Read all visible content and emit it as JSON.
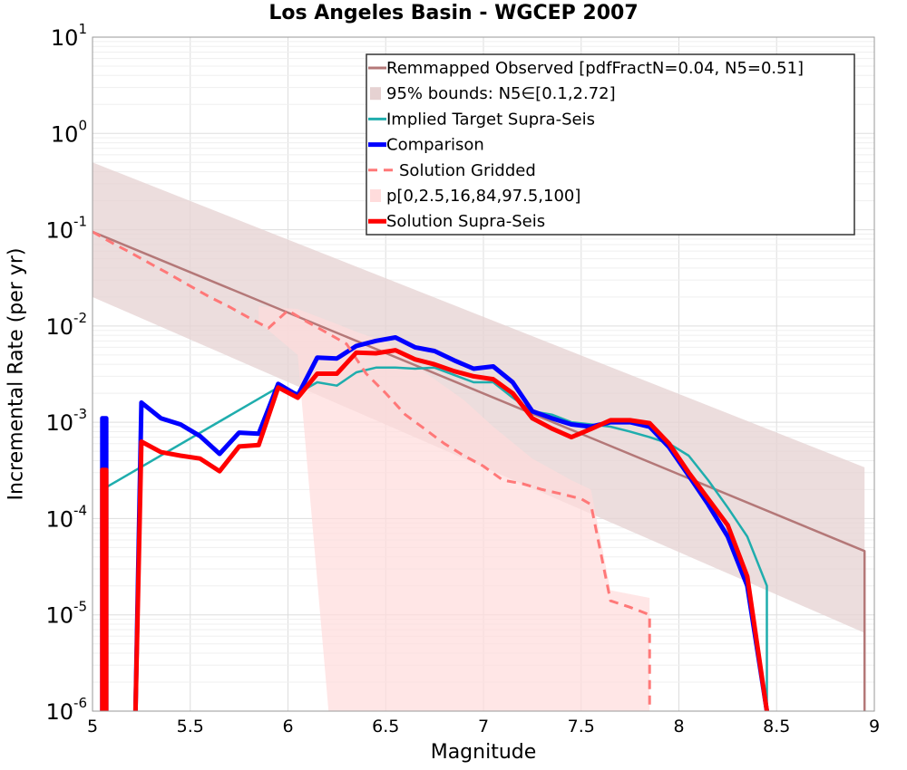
{
  "chart_data": {
    "type": "line",
    "title": "Los Angeles Basin - WGCEP 2007",
    "xlabel": "Magnitude",
    "ylabel": "Incremental Rate (per yr)",
    "xlim": [
      5,
      9
    ],
    "ylim": [
      1e-06,
      10
    ],
    "yscale": "log",
    "x_ticks": [
      5,
      5.5,
      6,
      6.5,
      7,
      7.5,
      8,
      8.5,
      9
    ],
    "x_tick_labels": [
      "5",
      "5.5",
      "6",
      "6.5",
      "7",
      "7.5",
      "8",
      "8.5",
      "9"
    ],
    "y_ticks": [
      {
        "base": "10",
        "exp": "-6",
        "value": 1e-06
      },
      {
        "base": "10",
        "exp": "-5",
        "value": 1e-05
      },
      {
        "base": "10",
        "exp": "-4",
        "value": 0.0001
      },
      {
        "base": "10",
        "exp": "-3",
        "value": 0.001
      },
      {
        "base": "10",
        "exp": "-2",
        "value": 0.01
      },
      {
        "base": "10",
        "exp": "-1",
        "value": 0.1
      },
      {
        "base": "10",
        "exp": "0",
        "value": 1
      },
      {
        "base": "10",
        "exp": "1",
        "value": 10
      }
    ],
    "legend_position": "top-right",
    "series": [
      {
        "name": "Remmapped Observed [pdfFractN=0.04, N5=0.51]",
        "kind": "line",
        "color": "#b47878",
        "x": [
          5.0,
          8.95,
          8.95
        ],
        "y": [
          0.095,
          4.6e-05,
          1e-07
        ]
      },
      {
        "name": "95% bounds: N5∈[0.1,2.72]",
        "kind": "band",
        "color": "#e6d2d2",
        "x": [
          5.0,
          8.95
        ],
        "lower": [
          0.02,
          6.5e-06
        ],
        "upper": [
          0.5,
          0.00034
        ]
      },
      {
        "name": "Implied Target Supra-Seis",
        "kind": "line",
        "color": "#1fadad",
        "x": [
          5.05,
          5.05,
          5.95,
          6.05,
          6.15,
          6.25,
          6.35,
          6.45,
          6.55,
          6.65,
          6.75,
          6.85,
          6.95,
          7.05,
          7.15,
          7.25,
          7.35,
          7.45,
          7.55,
          7.65,
          7.75,
          7.85,
          7.95,
          8.05,
          8.15,
          8.25,
          8.35,
          8.45,
          8.45
        ],
        "y": [
          1e-06,
          0.0002,
          0.0023,
          0.002,
          0.0026,
          0.0024,
          0.0033,
          0.0037,
          0.0037,
          0.0036,
          0.0037,
          0.0031,
          0.0026,
          0.0026,
          0.0018,
          0.0013,
          0.0012,
          0.001,
          0.00095,
          0.0009,
          0.0008,
          0.0007,
          0.0006,
          0.00045,
          0.00025,
          0.00013,
          6.5e-05,
          2e-05,
          1e-06
        ]
      },
      {
        "name": "Comparison",
        "kind": "line",
        "color": "#0000ff",
        "x": [
          5.05,
          5.05,
          5.07,
          5.07,
          5.22,
          5.22,
          5.25,
          5.35,
          5.45,
          5.55,
          5.65,
          5.75,
          5.85,
          5.95,
          6.05,
          6.15,
          6.25,
          6.35,
          6.45,
          6.55,
          6.65,
          6.75,
          6.85,
          6.95,
          7.05,
          7.15,
          7.25,
          7.35,
          7.45,
          7.55,
          7.65,
          7.75,
          7.85,
          7.95,
          8.05,
          8.15,
          8.25,
          8.35,
          8.45
        ],
        "y": [
          1e-06,
          0.0011,
          0.0011,
          1e-07,
          1e-07,
          1e-06,
          0.0016,
          0.0011,
          0.00095,
          0.00072,
          0.00047,
          0.00078,
          0.00076,
          0.0025,
          0.0019,
          0.0047,
          0.0046,
          0.0062,
          0.007,
          0.0076,
          0.006,
          0.0055,
          0.0044,
          0.0036,
          0.0038,
          0.0026,
          0.0013,
          0.0011,
          0.00095,
          0.0009,
          0.001,
          0.001,
          0.0009,
          0.00055,
          0.00028,
          0.00014,
          6.5e-05,
          2e-05,
          1e-06
        ]
      },
      {
        "name": "Solution Gridded",
        "kind": "line",
        "dashed": true,
        "color": "#ff7878",
        "x": [
          5.0,
          5.1,
          5.2,
          5.3,
          5.4,
          5.5,
          5.6,
          5.7,
          5.8,
          5.9,
          6.0,
          6.1,
          6.2,
          6.3,
          6.4,
          6.5,
          6.6,
          6.7,
          6.8,
          6.9,
          7.0,
          7.1,
          7.2,
          7.3,
          7.4,
          7.5,
          7.55,
          7.65,
          7.75,
          7.85,
          7.85
        ],
        "y": [
          0.095,
          0.073,
          0.057,
          0.044,
          0.034,
          0.026,
          0.02,
          0.0158,
          0.0122,
          0.0095,
          0.0145,
          0.011,
          0.0085,
          0.0065,
          0.0032,
          0.002,
          0.0012,
          0.00085,
          0.0006,
          0.00045,
          0.00035,
          0.00025,
          0.00023,
          0.0002,
          0.00018,
          0.00016,
          0.00014,
          1.4e-05,
          1.2e-05,
          1e-05,
          1e-07
        ]
      },
      {
        "name": "p[0,2.5,16,84,97.5,100]",
        "kind": "band",
        "color": "#ffdcdc",
        "x": [
          5.85,
          6.05,
          6.25,
          6.35,
          6.5,
          6.6,
          6.75,
          6.9,
          7.05,
          7.25,
          7.45,
          7.55,
          7.65,
          7.85
        ],
        "lower": [
          0.011,
          0.005,
          1e-07,
          1e-07,
          1e-07,
          1e-07,
          1e-07,
          1e-07,
          1e-07,
          1e-07,
          1e-07,
          1e-07,
          1e-07,
          1e-07
        ],
        "upper": [
          0.016,
          0.015,
          0.0105,
          0.0087,
          0.0068,
          0.0046,
          0.0028,
          0.0017,
          0.0009,
          0.00042,
          0.00025,
          0.0002,
          1.8e-05,
          1.5e-05
        ]
      },
      {
        "name": "Solution Supra-Seis",
        "kind": "line",
        "color": "#ff0000",
        "x": [
          5.05,
          5.05,
          5.07,
          5.07,
          5.22,
          5.22,
          5.25,
          5.35,
          5.45,
          5.55,
          5.65,
          5.75,
          5.85,
          5.95,
          6.05,
          6.15,
          6.25,
          6.35,
          6.45,
          6.55,
          6.65,
          6.75,
          6.85,
          6.95,
          7.05,
          7.15,
          7.25,
          7.35,
          7.45,
          7.55,
          7.65,
          7.75,
          7.85,
          7.95,
          8.05,
          8.15,
          8.25,
          8.35,
          8.45
        ],
        "y": [
          1e-06,
          0.00032,
          0.00032,
          1e-07,
          1e-07,
          1e-06,
          0.00063,
          0.00049,
          0.00045,
          0.00042,
          0.00031,
          0.00056,
          0.00058,
          0.0023,
          0.0018,
          0.0032,
          0.0032,
          0.0053,
          0.0052,
          0.0056,
          0.0045,
          0.004,
          0.0034,
          0.003,
          0.0028,
          0.002,
          0.0011,
          0.00086,
          0.0007,
          0.00085,
          0.00105,
          0.00105,
          0.00098,
          0.0006,
          0.0003,
          0.00016,
          8.5e-05,
          2.5e-05,
          1e-06
        ]
      }
    ]
  }
}
